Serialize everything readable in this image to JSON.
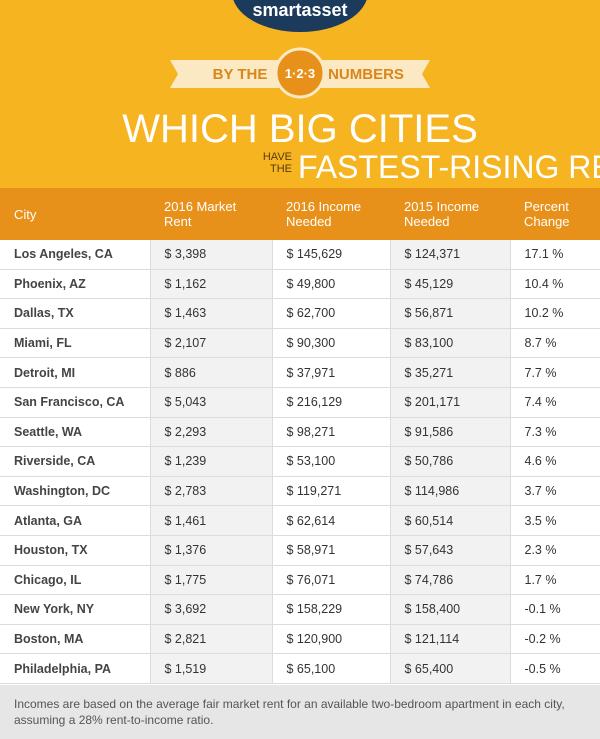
{
  "header": {
    "logo": "smartasset",
    "ribbon_left": "BY THE",
    "ribbon_badge": "1·2·3",
    "ribbon_right": "NUMBERS",
    "title_line1": "WHICH BIG CITIES",
    "title_small": [
      "HAVE",
      "THE"
    ],
    "title_line2": "FASTEST-RISING RENTS?"
  },
  "table": {
    "columns": [
      [
        "City"
      ],
      [
        "2016 Market",
        "Rent"
      ],
      [
        "2016 Income",
        "Needed"
      ],
      [
        "2015 Income",
        "Needed"
      ],
      [
        "Percent",
        "Change"
      ]
    ],
    "rows": [
      [
        "Los Angeles, CA",
        "$ 3,398",
        "$ 145,629",
        "$ 124,371",
        "17.1 %"
      ],
      [
        "Phoenix, AZ",
        "$ 1,162",
        "$ 49,800",
        "$ 45,129",
        "10.4 %"
      ],
      [
        "Dallas, TX",
        "$ 1,463",
        "$ 62,700",
        "$ 56,871",
        "10.2 %"
      ],
      [
        "Miami, FL",
        "$ 2,107",
        "$ 90,300",
        "$ 83,100",
        "8.7 %"
      ],
      [
        "Detroit, MI",
        "$ 886",
        "$ 37,971",
        "$ 35,271",
        "7.7 %"
      ],
      [
        "San Francisco, CA",
        "$ 5,043",
        "$ 216,129",
        "$ 201,171",
        "7.4 %"
      ],
      [
        "Seattle, WA",
        "$ 2,293",
        "$ 98,271",
        "$ 91,586",
        "7.3 %"
      ],
      [
        "Riverside, CA",
        "$ 1,239",
        "$ 53,100",
        "$ 50,786",
        "4.6 %"
      ],
      [
        "Washington, DC",
        "$ 2,783",
        "$ 119,271",
        "$ 114,986",
        "3.7 %"
      ],
      [
        "Atlanta, GA",
        "$ 1,461",
        "$ 62,614",
        "$ 60,514",
        "3.5 %"
      ],
      [
        "Houston, TX",
        "$ 1,376",
        "$ 58,971",
        "$ 57,643",
        "2.3 %"
      ],
      [
        "Chicago, IL",
        "$ 1,775",
        "$ 76,071",
        "$ 74,786",
        "1.7 %"
      ],
      [
        "New York, NY",
        "$ 3,692",
        "$ 158,229",
        "$ 158,400",
        "-0.1 %"
      ],
      [
        "Boston, MA",
        "$ 2,821",
        "$ 120,900",
        "$ 121,114",
        "-0.2 %"
      ],
      [
        "Philadelphia, PA",
        "$ 1,519",
        "$ 65,100",
        "$ 65,400",
        "-0.5 %"
      ]
    ]
  },
  "footer": {
    "note": "Incomes are based on the average fair market rent for an available two-bedroom apartment in each city, assuming a 28% rent-to-income ratio."
  }
}
